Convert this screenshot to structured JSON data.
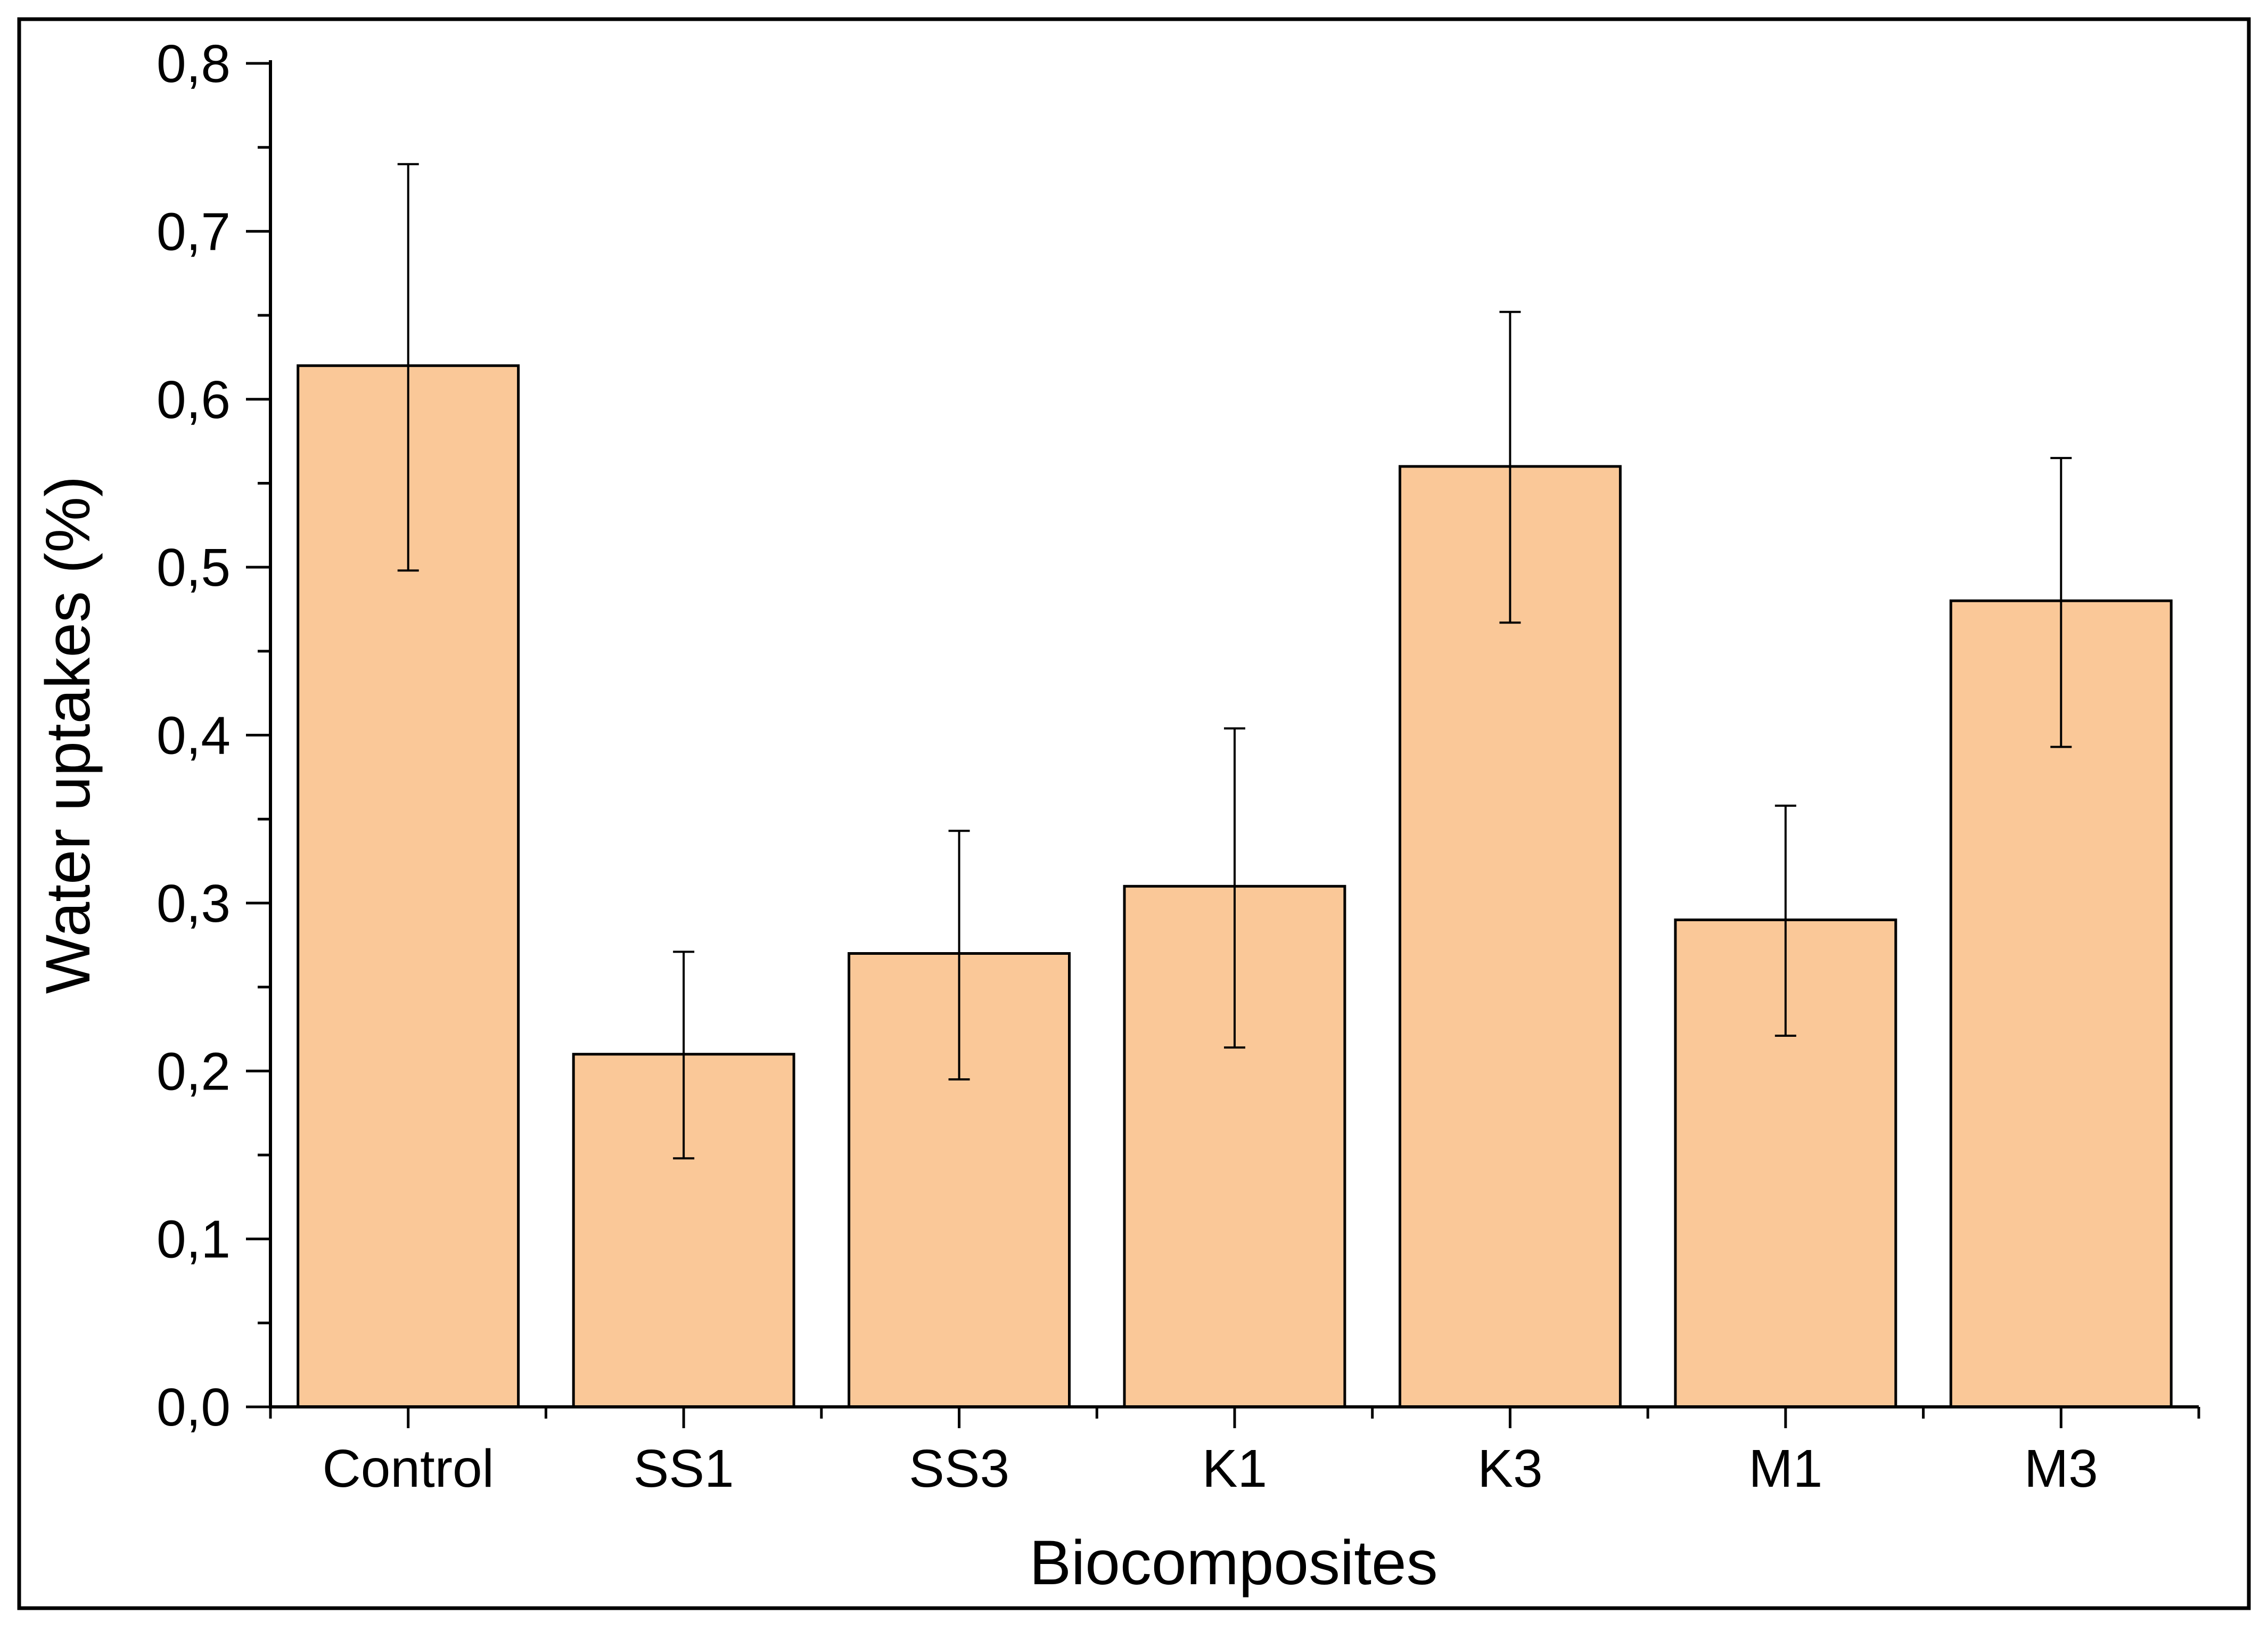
{
  "chart_data": {
    "type": "bar",
    "title": "",
    "xlabel": "Biocomposites",
    "ylabel": "Water uptakes (%)",
    "categories": [
      "Control",
      "SS1",
      "SS3",
      "K1",
      "K3",
      "M1",
      "M3"
    ],
    "values": [
      0.62,
      0.21,
      0.27,
      0.31,
      0.56,
      0.29,
      0.48
    ],
    "error_upper": [
      0.74,
      0.271,
      0.343,
      0.404,
      0.652,
      0.358,
      0.565
    ],
    "error_lower": [
      0.498,
      0.148,
      0.195,
      0.214,
      0.467,
      0.221,
      0.393
    ],
    "ylim": [
      0,
      0.8
    ],
    "yticks": [
      0.0,
      0.1,
      0.2,
      0.3,
      0.4,
      0.5,
      0.6,
      0.7,
      0.8
    ],
    "ytick_labels": [
      "0,0",
      "0,1",
      "0,2",
      "0,3",
      "0,4",
      "0,5",
      "0,6",
      "0,7",
      "0,8"
    ],
    "grid": false,
    "legend": "none"
  },
  "colors": {
    "bar_fill": "#FAC898",
    "bar_stroke": "#000000",
    "axis": "#000000",
    "error_bar": "#000000",
    "frame": "#000000",
    "background": "#ffffff"
  }
}
